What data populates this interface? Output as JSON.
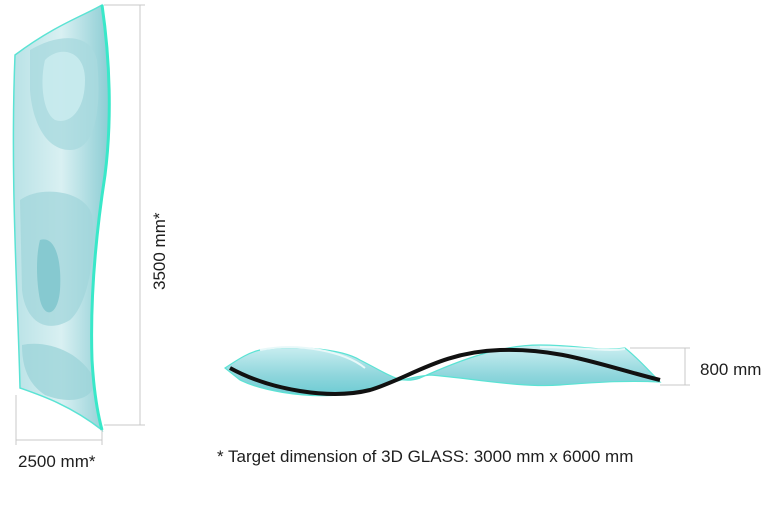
{
  "dimensions": {
    "height": "3500 mm*",
    "width": "2500 mm*",
    "depth": "800 mm"
  },
  "footnote": "* Target dimension of 3D GLASS: 3000 mm x 6000 mm",
  "colors": {
    "glass_light": "#d6eef1",
    "glass_mid": "#9fd3d9",
    "glass_dark": "#5fb1ba",
    "edge": "#4fe0cf",
    "dimension_line": "#c8c8c8"
  }
}
